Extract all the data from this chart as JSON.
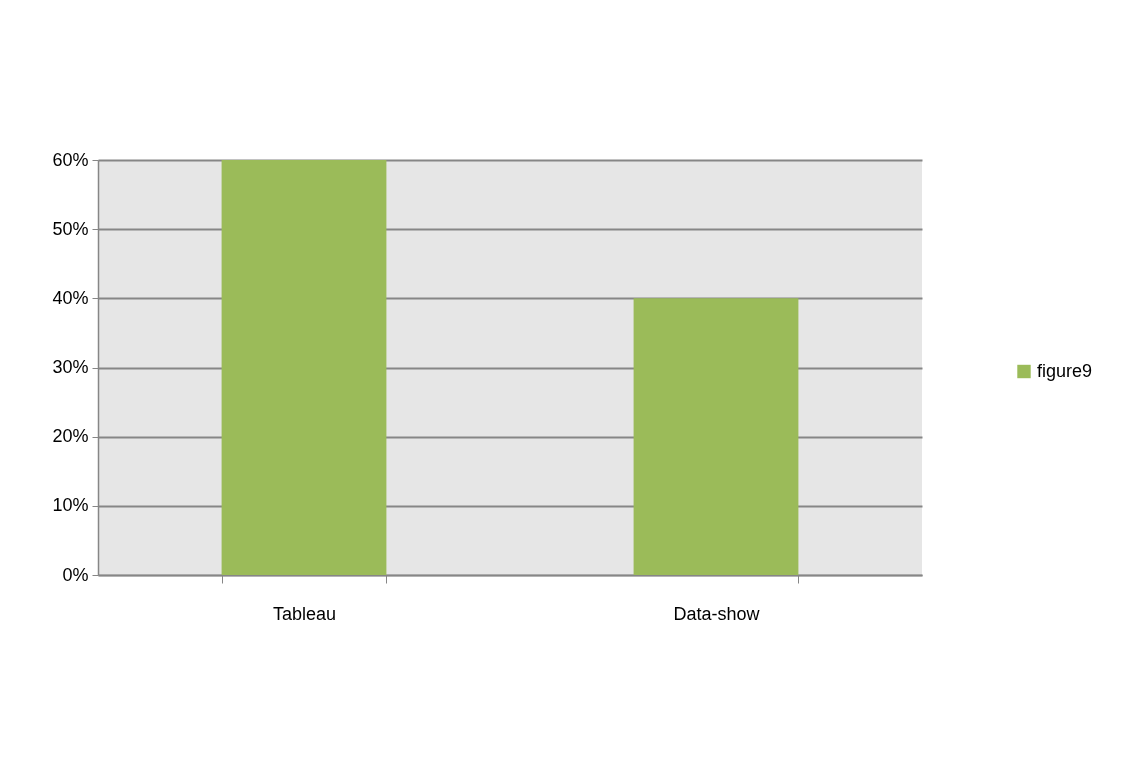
{
  "chart_data": {
    "type": "bar",
    "categories": [
      "Tableau",
      "Data-show"
    ],
    "series": [
      {
        "name": "figure9",
        "color": "#9bbb59",
        "values": [
          60,
          40
        ]
      }
    ],
    "ylim": [
      0,
      60
    ],
    "yticks": [
      {
        "value": 0,
        "label": "0%"
      },
      {
        "value": 10,
        "label": "10%"
      },
      {
        "value": 20,
        "label": "20%"
      },
      {
        "value": 30,
        "label": "30%"
      },
      {
        "value": 40,
        "label": "40%"
      },
      {
        "value": 50,
        "label": "50%"
      },
      {
        "value": 60,
        "label": "60%"
      }
    ],
    "grid": "y",
    "legend": "right"
  }
}
